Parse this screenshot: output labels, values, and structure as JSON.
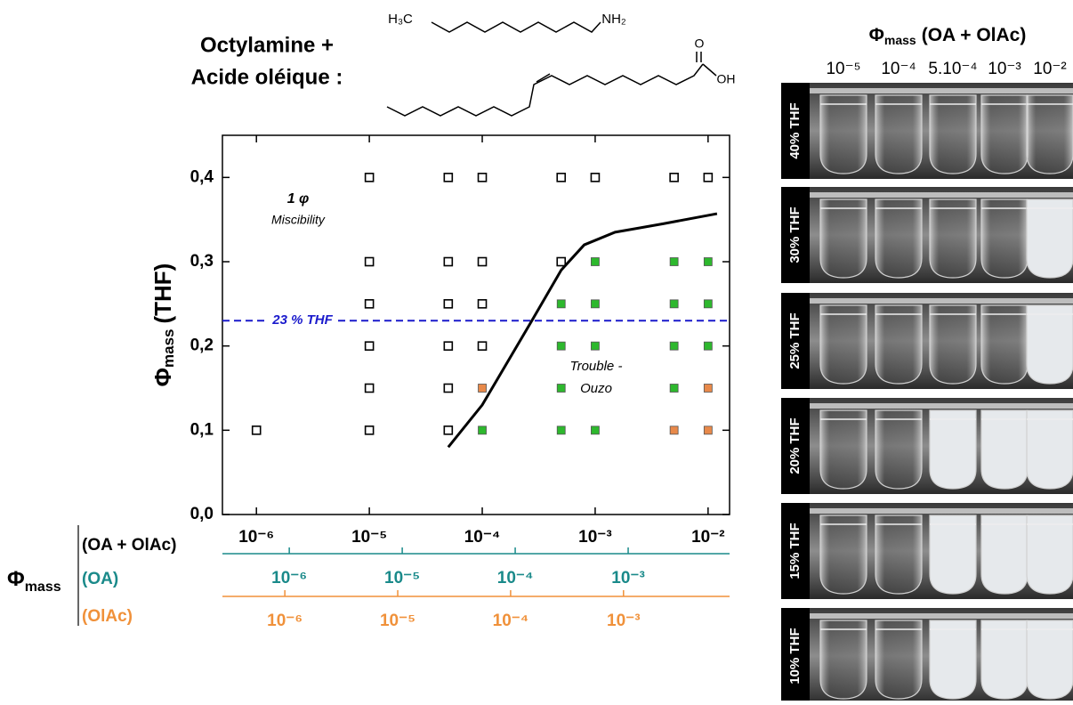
{
  "chart_data": {
    "type": "scatter",
    "title": [
      "Octylamine +",
      "Acide oléique :"
    ],
    "structure_labels": [
      "H₃C",
      "NH₂",
      "O",
      "OH"
    ],
    "ylabel": {
      "symbol": "Φ",
      "sub": "mass",
      "text": "(THF)"
    },
    "xlabel_symbol": {
      "symbol": "Φ",
      "sub": "mass"
    },
    "xlabel": "(OA + OlAc)",
    "log_x": true,
    "xlim": [
      5e-07,
      0.0155
    ],
    "ylim": [
      0,
      0.45
    ],
    "xticks": [
      {
        "value": 1e-06,
        "label": "10⁻⁶"
      },
      {
        "value": 1e-05,
        "label": "10⁻⁵"
      },
      {
        "value": 0.0001,
        "label": "10⁻⁴"
      },
      {
        "value": 0.001,
        "label": "10⁻³"
      },
      {
        "value": 0.01,
        "label": "10⁻²"
      }
    ],
    "yticks": [
      {
        "value": 0,
        "label": "0,0"
      },
      {
        "value": 0.1,
        "label": "0,1"
      },
      {
        "value": 0.2,
        "label": "0,2"
      },
      {
        "value": 0.3,
        "label": "0,3"
      },
      {
        "value": 0.4,
        "label": "0,4"
      }
    ],
    "series": [
      {
        "color": "#000000",
        "x": [
          1e-05,
          5e-05,
          0.0001,
          0.0005,
          0.001,
          0.005,
          0.01,
          1e-05,
          5e-05,
          0.0001,
          0.0005,
          1e-05,
          5e-05,
          0.0001,
          1e-05,
          5e-05,
          0.0001,
          1e-05,
          5e-05,
          1e-06,
          1e-05,
          5e-05
        ],
        "values": [
          0.4,
          0.4,
          0.4,
          0.4,
          0.4,
          0.4,
          0.4,
          0.3,
          0.3,
          0.3,
          0.3,
          0.25,
          0.25,
          0.25,
          0.2,
          0.2,
          0.2,
          0.15,
          0.15,
          0.1,
          0.1,
          0.1
        ]
      },
      {
        "color": "#2db82d",
        "x": [
          0.001,
          0.005,
          0.01,
          0.0005,
          0.001,
          0.005,
          0.01,
          0.0005,
          0.001,
          0.005,
          0.01,
          0.0005,
          0.005,
          0.0001,
          0.0005,
          0.001
        ],
        "values": [
          0.3,
          0.3,
          0.3,
          0.25,
          0.25,
          0.25,
          0.25,
          0.2,
          0.2,
          0.2,
          0.2,
          0.15,
          0.15,
          0.1,
          0.1,
          0.1
        ]
      },
      {
        "color": "#e8894a",
        "x": [
          0.0001,
          0.01,
          0.005,
          0.01
        ],
        "values": [
          0.15,
          0.15,
          0.1,
          0.1
        ]
      }
    ],
    "curve": {
      "color": "#000000",
      "x": [
        5e-05,
        0.0001,
        0.000275,
        0.0005,
        0.0008,
        0.0015,
        0.004,
        0.012
      ],
      "values": [
        0.08,
        0.13,
        0.23,
        0.29,
        0.32,
        0.335,
        0.345,
        0.357
      ]
    },
    "hline": {
      "value": 0.23,
      "label": "23 % THF",
      "color": "#1a1acc"
    },
    "annotations": [
      "1 φ",
      "Miscibility",
      "Trouble -",
      "Ouzo"
    ],
    "secondary_axes": [
      {
        "label": "(OA)",
        "color": "#1a8a8a",
        "xlim": [
          2.56e-07,
          0.0079
        ],
        "xticks": [
          {
            "value": 1e-06,
            "label": "10⁻⁶"
          },
          {
            "value": 1e-05,
            "label": "10⁻⁵"
          },
          {
            "value": 0.0001,
            "label": "10⁻⁴"
          },
          {
            "value": 0.001,
            "label": "10⁻³"
          }
        ]
      },
      {
        "label": "(OlAc)",
        "color": "#f0913a",
        "xlim": [
          2.8e-07,
          0.0087
        ],
        "xticks": [
          {
            "value": 1e-06,
            "label": "10⁻⁶"
          },
          {
            "value": 1e-05,
            "label": "10⁻⁵"
          },
          {
            "value": 0.0001,
            "label": "10⁻⁴"
          },
          {
            "value": 0.001,
            "label": "10⁻³"
          }
        ]
      }
    ],
    "panel": {
      "title": {
        "symbol": "Φ",
        "sub": "mass",
        "text": "(OA + OlAc)"
      },
      "columns": [
        "10⁻⁵",
        "10⁻⁴",
        "5.10⁻⁴",
        "10⁻³",
        "10⁻²"
      ],
      "rows": [
        "40% THF",
        "30% THF",
        "25% THF",
        "20% THF",
        "15% THF",
        "10% THF"
      ]
    }
  }
}
